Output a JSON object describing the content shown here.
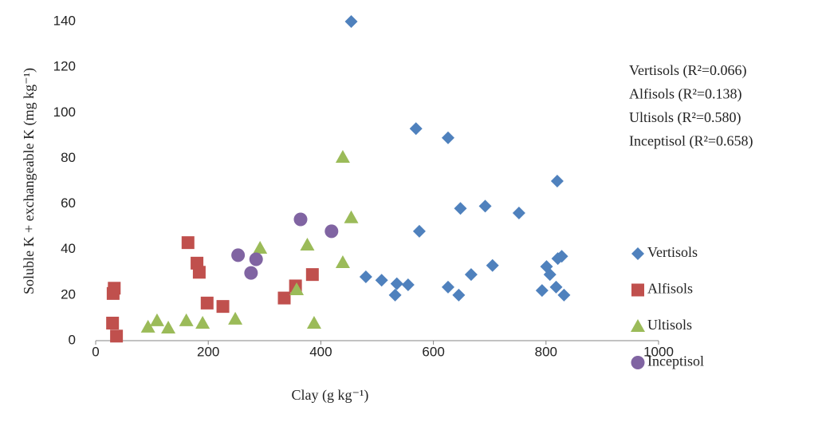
{
  "chart_data": {
    "type": "scatter",
    "x_label": "Clay (g kg⁻¹)",
    "y_label": "Soluble K + exchangeable K (mg kg⁻¹)",
    "annotations": [
      "Vertisols (R²=0.066)",
      "Alfisols (R²=0.138)",
      "Ultisols (R²=0.580)",
      "Inceptisol (R²=0.658)"
    ],
    "xlim": [
      0,
      1000
    ],
    "xticks": [
      0,
      200,
      400,
      600,
      800,
      1000
    ],
    "ylim": [
      0,
      140
    ],
    "yticks": [
      0,
      20,
      40,
      60,
      80,
      100,
      120,
      140
    ],
    "grid": false,
    "legend": "right",
    "series": [
      {
        "name": "Vertisols",
        "color": "#4f81bd",
        "marker": "diamond",
        "x": [
          454,
          569,
          626,
          648,
          692,
          752,
          820,
          575,
          480,
          508,
          532,
          535,
          555,
          626,
          645,
          667,
          705,
          801,
          807,
          793,
          818,
          828,
          821,
          832
        ],
        "values": [
          140,
          93,
          89,
          58,
          59,
          56,
          70,
          48,
          28,
          26.5,
          20,
          25,
          24.5,
          23.5,
          20,
          29,
          33,
          32.5,
          29,
          22,
          23.5,
          37,
          36,
          20
        ]
      },
      {
        "name": "Alfisols",
        "color": "#c0504d",
        "marker": "square",
        "x": [
          30,
          33,
          31,
          37,
          164,
          180,
          184,
          198,
          226,
          335,
          355,
          385
        ],
        "values": [
          7.7,
          23,
          20.7,
          2,
          43,
          34,
          30,
          16.5,
          15,
          18.7,
          24,
          29
        ]
      },
      {
        "name": "Ultisols",
        "color": "#9bbb59",
        "marker": "triangle",
        "x": [
          93,
          109,
          129,
          161,
          190,
          248,
          292,
          376,
          357,
          388,
          439,
          454,
          439
        ],
        "values": [
          6,
          8.8,
          5.6,
          8.8,
          7.7,
          9.5,
          40.6,
          42,
          22.4,
          7.7,
          80.5,
          54,
          34.3
        ]
      },
      {
        "name": "Inceptisol",
        "color": "#8064a2",
        "marker": "circle",
        "x": [
          253,
          276,
          285,
          364,
          419
        ],
        "values": [
          37.5,
          29.7,
          35.7,
          53.2,
          48
        ]
      }
    ]
  }
}
